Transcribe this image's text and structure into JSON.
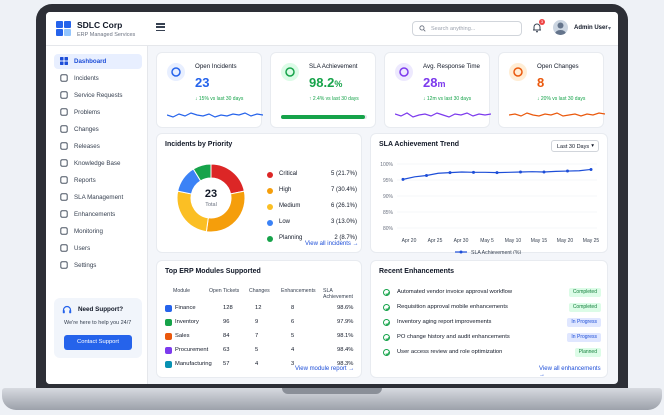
{
  "app": {
    "name": "SDLC Corp",
    "subtitle": "ERP Managed Services"
  },
  "topbar": {
    "search_placeholder": "Search anything...",
    "notifications": "3",
    "user": "Admin User"
  },
  "sidebar": {
    "items": [
      {
        "label": "Dashboard",
        "icon": "grid-icon"
      },
      {
        "label": "Incidents",
        "icon": "alert-icon"
      },
      {
        "label": "Service Requests",
        "icon": "document-icon"
      },
      {
        "label": "Problems",
        "icon": "bug-icon"
      },
      {
        "label": "Changes",
        "icon": "swap-icon"
      },
      {
        "label": "Releases",
        "icon": "rocket-icon"
      },
      {
        "label": "Knowledge Base",
        "icon": "book-icon"
      },
      {
        "label": "Reports",
        "icon": "bar-chart-icon"
      },
      {
        "label": "SLA Management",
        "icon": "trend-icon"
      },
      {
        "label": "Enhancements",
        "icon": "layers-icon"
      },
      {
        "label": "Monitoring",
        "icon": "pulse-icon"
      },
      {
        "label": "Users",
        "icon": "users-icon"
      },
      {
        "label": "Settings",
        "icon": "gear-icon"
      }
    ],
    "support": {
      "title": "Need Support?",
      "text": "We're here to help you 24/7",
      "button": "Contact Support"
    }
  },
  "kpis": [
    {
      "title": "Open Incidents",
      "value": "23",
      "trend": "↓ 15% vs last 30 days",
      "color": "#2563eb",
      "bg": "#e8efff",
      "icon": "person-icon"
    },
    {
      "title": "SLA Achievement",
      "value": "98.2",
      "unit": "%",
      "trend": "↑ 2.4% vs last 30 days",
      "color": "#16a34a",
      "bg": "#dcfce7",
      "icon": "shield-check-icon",
      "progress": 0.982
    },
    {
      "title": "Avg. Response Time",
      "value": "28",
      "unit": "m",
      "trend": "↓ 12m vs last 30 days",
      "color": "#7c3aed",
      "bg": "#ede9fe",
      "icon": "clock-icon"
    },
    {
      "title": "Open Changes",
      "value": "8",
      "trend": "↓ 20% vs last 30 days",
      "color": "#ea580c",
      "bg": "#ffedd5",
      "icon": "swap-icon"
    }
  ],
  "incidents_priority": {
    "title": "Incidents by Priority",
    "total": "23",
    "total_label": "Total",
    "items": [
      {
        "label": "Critical",
        "value": "5 (21.7%)",
        "count": 5,
        "color": "#dc2626"
      },
      {
        "label": "High",
        "value": "7 (30.4%)",
        "count": 7,
        "color": "#f59e0b"
      },
      {
        "label": "Medium",
        "value": "6 (26.1%)",
        "count": 6,
        "color": "#fbbf24"
      },
      {
        "label": "Low",
        "value": "3 (13.0%)",
        "count": 3,
        "color": "#3b82f6"
      },
      {
        "label": "Planning",
        "value": "2 (8.7%)",
        "count": 2,
        "color": "#16a34a"
      }
    ],
    "link": "View all incidents →"
  },
  "chart_data": {
    "type": "line",
    "title": "SLA Achievement Trend",
    "x": [
      "Apr 20",
      "Apr 21",
      "Apr 22",
      "Apr 23",
      "Apr 24",
      "Apr 25",
      "Apr 26",
      "Apr 27",
      "Apr 28",
      "Apr 29",
      "Apr 30",
      "May 1",
      "May 5",
      "May 10",
      "May 15",
      "May 20",
      "May 25"
    ],
    "x_ticks": [
      "Apr 20",
      "Apr 25",
      "Apr 30",
      "May 5",
      "May 10",
      "May 15",
      "May 20",
      "May 25"
    ],
    "y_ticks": [
      "100%",
      "95%",
      "90%",
      "85%",
      "80%"
    ],
    "series": [
      {
        "name": "SLA Achievement (%)",
        "color": "#1d4ed8",
        "values": [
          95.2,
          96.0,
          96.4,
          97.1,
          97.3,
          97.5,
          97.4,
          97.4,
          97.3,
          97.4,
          97.5,
          97.6,
          97.5,
          97.7,
          97.8,
          97.9,
          98.3
        ]
      }
    ],
    "ylim": [
      80,
      100
    ],
    "range": "Last 30 Days"
  },
  "modules": {
    "title": "Top ERP Modules Supported",
    "columns": [
      "Module",
      "Open Tickets",
      "Changes",
      "Enhancements",
      "SLA Achievement"
    ],
    "rows": [
      {
        "name": "Finance",
        "tickets": "128",
        "changes": "12",
        "enh": "8",
        "sla": "98.6%",
        "color": "#2563eb"
      },
      {
        "name": "Inventory",
        "tickets": "96",
        "changes": "9",
        "enh": "6",
        "sla": "97.9%",
        "color": "#16a34a"
      },
      {
        "name": "Sales",
        "tickets": "84",
        "changes": "7",
        "enh": "5",
        "sla": "98.1%",
        "color": "#ea580c"
      },
      {
        "name": "Procurement",
        "tickets": "63",
        "changes": "5",
        "enh": "4",
        "sla": "98.4%",
        "color": "#7c3aed"
      },
      {
        "name": "Manufacturing",
        "tickets": "57",
        "changes": "4",
        "enh": "3",
        "sla": "98.3%",
        "color": "#0891b2"
      }
    ],
    "link": "View module report →"
  },
  "enhancements": {
    "title": "Recent Enhancements",
    "items": [
      {
        "text": "Automated vendor invoice approval workflow",
        "status": "Completed"
      },
      {
        "text": "Requisition approval mobile enhancements",
        "status": "Completed"
      },
      {
        "text": "Inventory aging report improvements",
        "status": "In Progress"
      },
      {
        "text": "PO change history and audit enhancements",
        "status": "In Progress"
      },
      {
        "text": "User access review and role optimization",
        "status": "Planned"
      }
    ],
    "link": "View all enhancements →"
  }
}
